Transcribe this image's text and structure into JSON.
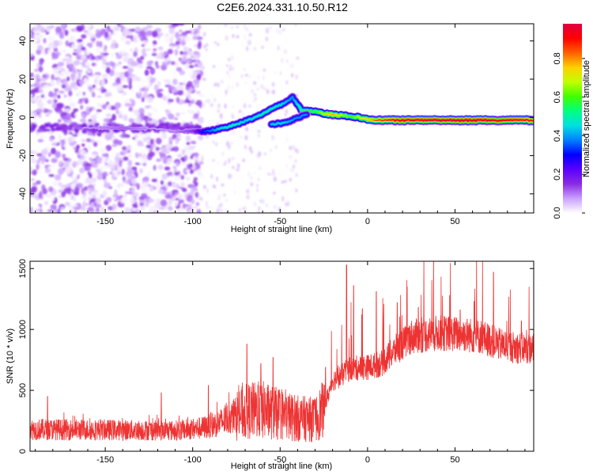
{
  "title": "C2E6.2024.331.10.50.R12",
  "chart_data": [
    {
      "type": "heatmap",
      "xlabel": "Height of straight line (km)",
      "ylabel": "Frequency (Hz)",
      "xlim": [
        -193,
        95
      ],
      "ylim": [
        -50,
        49
      ],
      "xticks": [
        -150,
        -100,
        -50,
        0,
        50
      ],
      "yticks": [
        -40,
        -20,
        0,
        20,
        40
      ],
      "background": "#ffffff",
      "noise_region_x": [
        -193,
        -95
      ],
      "sparse_noise_region_x": [
        -95,
        -40
      ],
      "trace": [
        {
          "x": -193,
          "y": -5.5,
          "amp": 0.05
        },
        {
          "x": -170,
          "y": -5.5,
          "amp": 0.07
        },
        {
          "x": -150,
          "y": -5.5,
          "amp": 0.1
        },
        {
          "x": -140,
          "y": -5.5,
          "amp": 0.12
        },
        {
          "x": -120,
          "y": -6.0,
          "amp": 0.08
        },
        {
          "x": -110,
          "y": -7.5,
          "amp": 0.1
        },
        {
          "x": -100,
          "y": -7.0,
          "amp": 0.15
        },
        {
          "x": -93,
          "y": -7.5,
          "amp": 0.35
        },
        {
          "x": -85,
          "y": -6.0,
          "amp": 0.45
        },
        {
          "x": -78,
          "y": -4.5,
          "amp": 0.5
        },
        {
          "x": -70,
          "y": -2.0,
          "amp": 0.45
        },
        {
          "x": -62,
          "y": 1.0,
          "amp": 0.5
        },
        {
          "x": -55,
          "y": 4.5,
          "amp": 0.5
        },
        {
          "x": -48,
          "y": 7.5,
          "amp": 0.45
        },
        {
          "x": -43,
          "y": 10.5,
          "amp": 0.4
        },
        {
          "x": -38,
          "y": 4.0,
          "amp": 0.55
        },
        {
          "x": -30,
          "y": 3.0,
          "amp": 0.6
        },
        {
          "x": -25,
          "y": 2.0,
          "amp": 0.7
        },
        {
          "x": -20,
          "y": 1.5,
          "amp": 0.8
        },
        {
          "x": -10,
          "y": 0.5,
          "amp": 0.6
        },
        {
          "x": -5,
          "y": 0.0,
          "amp": 0.7
        },
        {
          "x": 0,
          "y": -1.0,
          "amp": 0.75
        },
        {
          "x": 5,
          "y": -1.5,
          "amp": 0.85
        },
        {
          "x": 20,
          "y": -1.5,
          "amp": 0.95
        },
        {
          "x": 40,
          "y": -1.5,
          "amp": 0.98
        },
        {
          "x": 60,
          "y": -1.5,
          "amp": 0.98
        },
        {
          "x": 80,
          "y": -1.5,
          "amp": 0.95
        },
        {
          "x": 95,
          "y": -1.5,
          "amp": 0.9
        }
      ],
      "secondary_trace": [
        {
          "x": -55,
          "y": -3.5,
          "amp": 0.45
        },
        {
          "x": -48,
          "y": -3.0,
          "amp": 0.45
        },
        {
          "x": -42,
          "y": -1.0,
          "amp": 0.4
        },
        {
          "x": -35,
          "y": 1.5,
          "amp": 0.4
        }
      ],
      "colorbar": {
        "label": "Normalized spectral amplitude",
        "ticks": [
          0.0,
          0.2,
          0.4,
          0.6,
          0.8
        ],
        "tick_labels": [
          "0.0",
          "0.2",
          "0.4",
          "0.6",
          "0.8"
        ],
        "range": [
          0.0,
          0.98
        ],
        "colormap": [
          "#ffffff",
          "#c9a0ff",
          "#8a2be2",
          "#5a00ff",
          "#0000ff",
          "#0080ff",
          "#00e0e0",
          "#00ff80",
          "#40ff00",
          "#c0ff00",
          "#ffd000",
          "#ff6000",
          "#ff0000",
          "#e00040"
        ]
      }
    },
    {
      "type": "line",
      "xlabel": "Height of straight line (km)",
      "ylabel": "SNR (10 * v/v)",
      "xlim": [
        -193,
        95
      ],
      "ylim": [
        0,
        1560
      ],
      "xticks": [
        -150,
        -100,
        -50,
        0,
        50
      ],
      "yticks": [
        0,
        500,
        1000,
        1500
      ],
      "color": "#ee3333",
      "baseline": [
        {
          "x": -193,
          "y": 180
        },
        {
          "x": -150,
          "y": 175
        },
        {
          "x": -110,
          "y": 170
        },
        {
          "x": -95,
          "y": 190
        },
        {
          "x": -85,
          "y": 230
        },
        {
          "x": -75,
          "y": 300
        },
        {
          "x": -68,
          "y": 330
        },
        {
          "x": -60,
          "y": 340
        },
        {
          "x": -50,
          "y": 300
        },
        {
          "x": -40,
          "y": 270
        },
        {
          "x": -30,
          "y": 260
        },
        {
          "x": -25,
          "y": 350
        },
        {
          "x": -20,
          "y": 580
        },
        {
          "x": -15,
          "y": 620
        },
        {
          "x": -10,
          "y": 680
        },
        {
          "x": 0,
          "y": 690
        },
        {
          "x": 8,
          "y": 720
        },
        {
          "x": 15,
          "y": 820
        },
        {
          "x": 25,
          "y": 940
        },
        {
          "x": 40,
          "y": 970
        },
        {
          "x": 55,
          "y": 960
        },
        {
          "x": 65,
          "y": 940
        },
        {
          "x": 75,
          "y": 880
        },
        {
          "x": 85,
          "y": 850
        },
        {
          "x": 95,
          "y": 840
        }
      ],
      "spikes": [
        {
          "x": -183,
          "y": 450
        },
        {
          "x": -118,
          "y": 480
        },
        {
          "x": -91,
          "y": 540
        },
        {
          "x": -69,
          "y": 880
        },
        {
          "x": -61,
          "y": 720
        },
        {
          "x": -54,
          "y": 770
        },
        {
          "x": -24,
          "y": 690
        },
        {
          "x": -12,
          "y": 1530
        },
        {
          "x": -8,
          "y": 1360
        },
        {
          "x": -3,
          "y": 1170
        },
        {
          "x": 5,
          "y": 1310
        },
        {
          "x": 17,
          "y": 1220
        },
        {
          "x": 29,
          "y": 1180
        },
        {
          "x": 53,
          "y": 1160
        },
        {
          "x": 61,
          "y": 1230
        },
        {
          "x": 72,
          "y": 1470
        },
        {
          "x": 88,
          "y": 1070
        }
      ]
    }
  ]
}
